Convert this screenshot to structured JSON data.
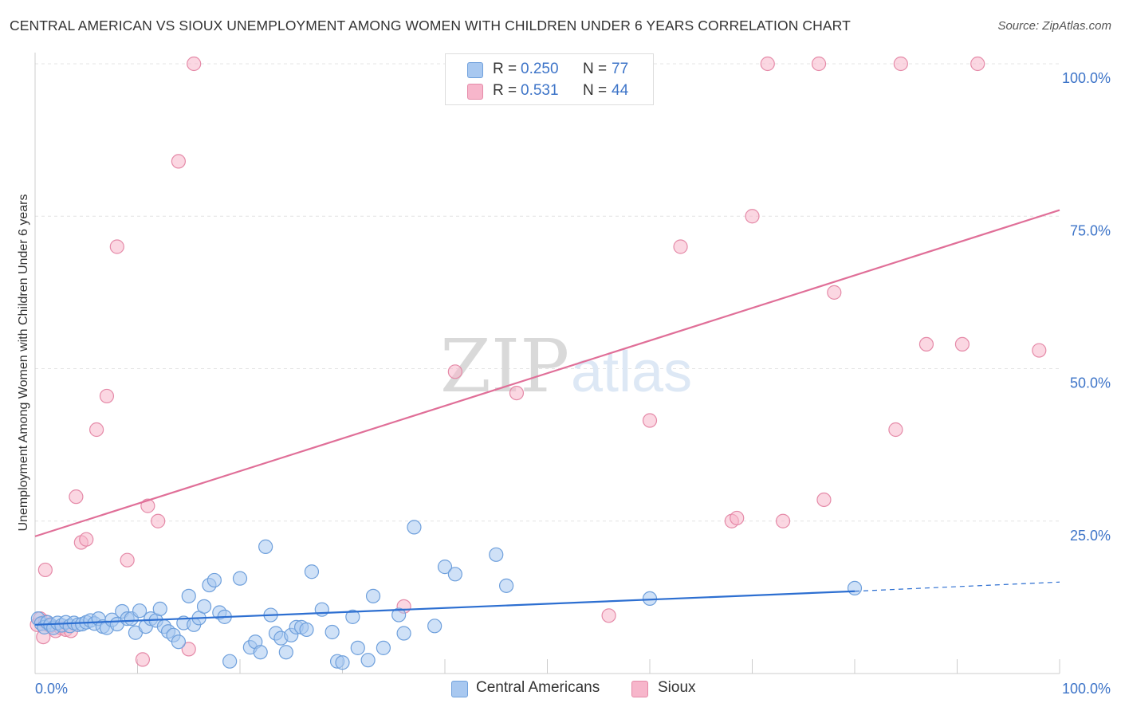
{
  "title": "CENTRAL AMERICAN VS SIOUX UNEMPLOYMENT AMONG WOMEN WITH CHILDREN UNDER 6 YEARS CORRELATION CHART",
  "source": "Source: ZipAtlas.com",
  "watermark": {
    "zip": "ZIP",
    "atlas": "atlas"
  },
  "legend_stats": [
    {
      "r_label": "R =",
      "r_value": "0.250",
      "n_label": "N =",
      "n_value": "77",
      "color": "#a8c8f0"
    },
    {
      "r_label": "R =",
      "r_value": "0.531",
      "n_label": "N =",
      "n_value": "44",
      "color": "#f7b6cb"
    }
  ],
  "colors": {
    "blue_fill": "#a8c8f0",
    "blue_stroke": "#6fa0dc",
    "blue_line": "#2d6fd1",
    "pink_fill": "#f7b6cb",
    "pink_stroke": "#e58aa8",
    "pink_line": "#e06f98",
    "tick_label": "#3d74c8"
  },
  "chart_data": {
    "type": "scatter",
    "title": "CENTRAL AMERICAN VS SIOUX UNEMPLOYMENT AMONG WOMEN WITH CHILDREN UNDER 6 YEARS CORRELATION CHART",
    "xlabel": "",
    "ylabel": "Unemployment Among Women with Children Under 6 years",
    "xlim": [
      0,
      100
    ],
    "ylim": [
      0,
      100
    ],
    "x_tick_labels": [
      "0.0%",
      "100.0%"
    ],
    "y_tick_labels": [
      "25.0%",
      "50.0%",
      "75.0%",
      "100.0%"
    ],
    "y_ticks": [
      25,
      50,
      75,
      100
    ],
    "grid": true,
    "legend_position": "bottom-center",
    "series": [
      {
        "name": "Central Americans",
        "r": 0.25,
        "n": 77,
        "trend": {
          "x0": 0,
          "y0": 8.0,
          "x1": 80,
          "y1": 13.5,
          "dashed_to": 100,
          "dashed_y": 15.0
        },
        "points": [
          [
            0.3,
            9.0
          ],
          [
            0.6,
            8.2
          ],
          [
            0.9,
            7.6
          ],
          [
            1.2,
            8.4
          ],
          [
            1.5,
            8.0
          ],
          [
            1.8,
            7.5
          ],
          [
            2.2,
            8.3
          ],
          [
            2.6,
            7.9
          ],
          [
            3.0,
            8.4
          ],
          [
            3.4,
            7.8
          ],
          [
            3.8,
            8.3
          ],
          [
            4.2,
            8.0
          ],
          [
            4.6,
            8.1
          ],
          [
            5.0,
            8.4
          ],
          [
            5.4,
            8.7
          ],
          [
            5.8,
            8.2
          ],
          [
            6.2,
            9.0
          ],
          [
            6.6,
            7.7
          ],
          [
            7.0,
            7.5
          ],
          [
            7.5,
            8.8
          ],
          [
            8.0,
            8.1
          ],
          [
            8.5,
            10.2
          ],
          [
            9.0,
            9.0
          ],
          [
            9.4,
            9.0
          ],
          [
            9.8,
            6.7
          ],
          [
            10.2,
            10.3
          ],
          [
            10.8,
            7.7
          ],
          [
            11.3,
            9.0
          ],
          [
            11.8,
            8.7
          ],
          [
            12.2,
            10.6
          ],
          [
            12.6,
            7.7
          ],
          [
            13.0,
            6.9
          ],
          [
            13.5,
            6.3
          ],
          [
            14.0,
            5.2
          ],
          [
            14.5,
            8.3
          ],
          [
            15.0,
            12.7
          ],
          [
            15.5,
            8.0
          ],
          [
            16.0,
            9.1
          ],
          [
            16.5,
            11.0
          ],
          [
            17.0,
            14.5
          ],
          [
            17.5,
            15.3
          ],
          [
            18.0,
            10.0
          ],
          [
            18.5,
            9.3
          ],
          [
            19.0,
            2.0
          ],
          [
            20.0,
            15.6
          ],
          [
            21.0,
            4.3
          ],
          [
            21.5,
            5.2
          ],
          [
            22.0,
            3.5
          ],
          [
            22.5,
            20.8
          ],
          [
            23.0,
            9.6
          ],
          [
            23.5,
            6.6
          ],
          [
            24.0,
            5.8
          ],
          [
            24.5,
            3.5
          ],
          [
            25.0,
            6.3
          ],
          [
            25.5,
            7.6
          ],
          [
            26.0,
            7.6
          ],
          [
            26.5,
            7.2
          ],
          [
            27.0,
            16.7
          ],
          [
            28.0,
            10.5
          ],
          [
            29.0,
            6.8
          ],
          [
            29.5,
            2.0
          ],
          [
            30.0,
            1.8
          ],
          [
            31.0,
            9.3
          ],
          [
            31.5,
            4.2
          ],
          [
            32.5,
            2.2
          ],
          [
            33.0,
            12.7
          ],
          [
            34.0,
            4.2
          ],
          [
            35.5,
            9.6
          ],
          [
            36.0,
            6.6
          ],
          [
            37.0,
            24.0
          ],
          [
            39.0,
            7.8
          ],
          [
            40.0,
            17.5
          ],
          [
            41.0,
            16.3
          ],
          [
            45.0,
            19.5
          ],
          [
            46.0,
            14.4
          ],
          [
            60.0,
            12.3
          ],
          [
            80.0,
            14.0
          ]
        ]
      },
      {
        "name": "Sioux",
        "r": 0.531,
        "n": 44,
        "trend": {
          "x0": 0,
          "y0": 22.5,
          "x1": 100,
          "y1": 76.0
        },
        "points": [
          [
            0.2,
            8.0
          ],
          [
            0.5,
            9.0
          ],
          [
            1.0,
            8.5
          ],
          [
            1.5,
            7.8
          ],
          [
            2.0,
            7.0
          ],
          [
            2.5,
            7.5
          ],
          [
            3.0,
            7.2
          ],
          [
            3.5,
            7.0
          ],
          [
            1.0,
            17.0
          ],
          [
            4.0,
            29.0
          ],
          [
            4.5,
            21.5
          ],
          [
            5.0,
            22.0
          ],
          [
            6.0,
            40.0
          ],
          [
            7.0,
            45.5
          ],
          [
            8.0,
            70.0
          ],
          [
            9.0,
            18.6
          ],
          [
            10.5,
            2.3
          ],
          [
            11.0,
            27.5
          ],
          [
            12.0,
            25.0
          ],
          [
            14.0,
            84.0
          ],
          [
            15.0,
            4.0
          ],
          [
            15.5,
            100.0
          ],
          [
            36.0,
            11.0
          ],
          [
            41.0,
            49.5
          ],
          [
            47.0,
            46.0
          ],
          [
            55.0,
            100.0
          ],
          [
            56.0,
            9.5
          ],
          [
            60.0,
            41.5
          ],
          [
            63.0,
            70.0
          ],
          [
            68.0,
            25.0
          ],
          [
            68.5,
            25.5
          ],
          [
            70.0,
            75.0
          ],
          [
            71.5,
            100.0
          ],
          [
            73.0,
            25.0
          ],
          [
            76.5,
            100.0
          ],
          [
            77.0,
            28.5
          ],
          [
            78.0,
            62.5
          ],
          [
            84.0,
            40.0
          ],
          [
            84.5,
            100.0
          ],
          [
            87.0,
            54.0
          ],
          [
            90.5,
            54.0
          ],
          [
            92.0,
            100.0
          ],
          [
            98.0,
            53.0
          ],
          [
            0.8,
            6.0
          ]
        ]
      }
    ]
  }
}
